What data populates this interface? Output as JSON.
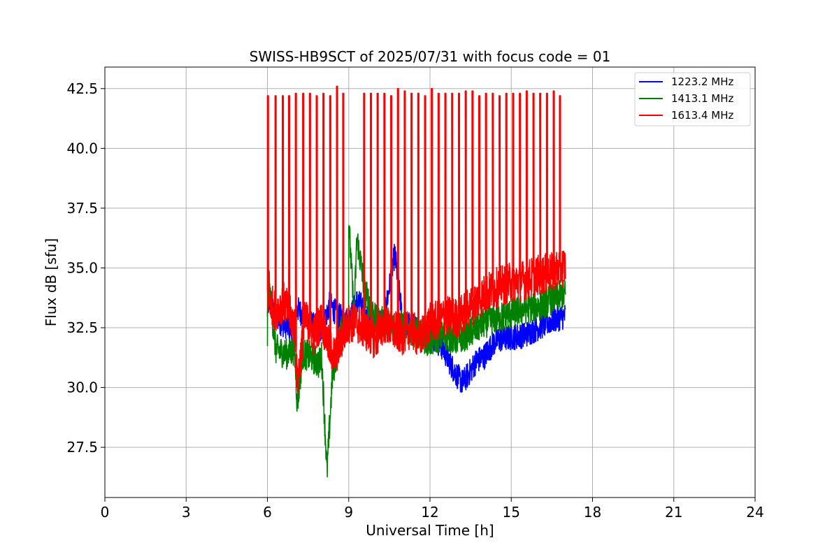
{
  "chart_data": {
    "type": "line",
    "title": "SWISS-HB9SCT of 2025/07/31 with focus code = 01",
    "xlabel": "Universal Time [h]",
    "ylabel": "Flux dB [sfu]",
    "xlim": [
      0,
      24
    ],
    "ylim": [
      25.4,
      43.4
    ],
    "xticks": [
      0,
      3,
      6,
      9,
      12,
      15,
      18,
      21,
      24
    ],
    "yticks": [
      27.5,
      30.0,
      32.5,
      35.0,
      37.5,
      40.0,
      42.5
    ],
    "grid": true,
    "legend_position": "top-right",
    "series": [
      {
        "name": "1223.2 MHz",
        "color": "#0000ff",
        "x": [
          6.0,
          6.0,
          6.5,
          7.0,
          7.1,
          7.5,
          8.0,
          8.3,
          8.6,
          9.0,
          9.3,
          9.5,
          9.8,
          10.0,
          10.3,
          10.7,
          11.0,
          11.5,
          12.0,
          12.5,
          12.8,
          13.0,
          13.2,
          13.5,
          13.7,
          14.0,
          14.3,
          14.5,
          15.0,
          15.5,
          16.0,
          16.5,
          17.0
        ],
        "y": [
          32.8,
          33.6,
          32.7,
          32.4,
          33.3,
          32.8,
          32.3,
          33.5,
          33.0,
          32.8,
          33.6,
          33.4,
          32.6,
          32.8,
          32.8,
          35.6,
          32.7,
          32.5,
          32.3,
          31.6,
          30.9,
          30.5,
          30.2,
          30.7,
          31.1,
          31.3,
          31.8,
          32.0,
          32.1,
          32.2,
          32.5,
          32.8,
          33.0
        ]
      },
      {
        "name": "1413.1 MHz",
        "color": "#008000",
        "x": [
          6.0,
          6.0,
          6.3,
          6.7,
          7.0,
          7.1,
          7.3,
          7.6,
          7.9,
          8.0,
          8.2,
          8.4,
          8.7,
          9.0,
          9.0,
          9.2,
          9.3,
          9.6,
          10.0,
          10.5,
          11.0,
          11.5,
          12.0,
          12.5,
          13.0,
          13.5,
          14.0,
          14.5,
          15.0,
          15.5,
          16.0,
          16.5,
          17.0
        ],
        "y": [
          32.0,
          35.0,
          31.6,
          31.4,
          31.6,
          29.3,
          31.4,
          31.3,
          31.0,
          31.3,
          26.5,
          30.5,
          32.3,
          32.8,
          37.0,
          32.9,
          36.3,
          34.0,
          32.8,
          32.7,
          32.6,
          32.3,
          31.9,
          32.2,
          32.0,
          32.3,
          32.7,
          32.9,
          33.1,
          33.3,
          33.4,
          33.7,
          33.9
        ]
      },
      {
        "name": "1613.4 MHz",
        "color": "#ff0000",
        "x": [
          6.0,
          6.3,
          6.6,
          7.0,
          7.1,
          7.4,
          7.7,
          8.0,
          8.3,
          8.5,
          8.8,
          9.0,
          9.3,
          9.5,
          9.8,
          10.0,
          10.3,
          10.6,
          11.0,
          11.3,
          11.6,
          12.0,
          12.3,
          12.6,
          13.0,
          13.5,
          14.0,
          14.5,
          15.0,
          15.5,
          16.0,
          16.5,
          17.0
        ],
        "y": [
          33.8,
          33.2,
          33.6,
          32.6,
          30.2,
          32.9,
          32.2,
          32.8,
          31.6,
          31.3,
          32.2,
          32.7,
          32.7,
          32.5,
          32.2,
          32.0,
          32.7,
          32.4,
          32.2,
          32.5,
          32.0,
          32.7,
          32.8,
          33.0,
          32.9,
          33.4,
          33.9,
          34.2,
          34.4,
          34.5,
          34.7,
          34.8,
          35.1
        ],
        "spikes_x": [
          6.0,
          6.28,
          6.55,
          6.78,
          7.03,
          7.3,
          7.55,
          7.8,
          8.05,
          8.3,
          8.55,
          8.78,
          9.55,
          9.8,
          10.05,
          10.3,
          10.55,
          10.8,
          11.05,
          11.3,
          11.55,
          11.8,
          12.05,
          12.3,
          12.55,
          12.8,
          13.05,
          13.3,
          13.55,
          13.8,
          14.05,
          14.3,
          14.55,
          14.8,
          15.05,
          15.3,
          15.55,
          15.8,
          16.05,
          16.3,
          16.55,
          16.78
        ],
        "spikes_y": [
          42.2,
          42.2,
          42.2,
          42.2,
          42.3,
          42.3,
          42.3,
          42.2,
          42.3,
          42.2,
          42.6,
          42.3,
          42.3,
          42.3,
          42.3,
          42.3,
          42.2,
          42.5,
          42.4,
          42.3,
          42.3,
          42.2,
          42.5,
          42.3,
          42.3,
          42.3,
          42.3,
          42.4,
          42.4,
          42.2,
          42.3,
          42.3,
          42.2,
          42.3,
          42.3,
          42.3,
          42.4,
          42.3,
          42.3,
          42.3,
          42.4,
          42.2
        ]
      }
    ]
  }
}
